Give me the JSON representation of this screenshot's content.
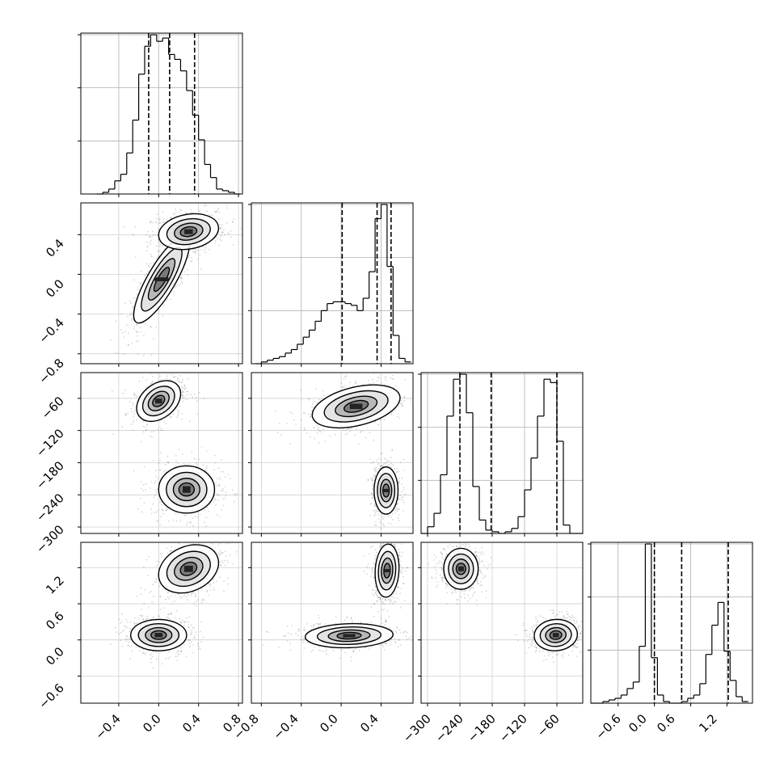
{
  "chart_data": {
    "type": "corner",
    "grid": true,
    "tick_labels": {
      "p0": [
        "−0.4",
        "0.0",
        "0.4",
        "0.8"
      ],
      "p1": [
        "−0.8",
        "−0.4",
        "0.0",
        "0.4"
      ],
      "p2": [
        "−300",
        "−240",
        "−180",
        "−120",
        "−60"
      ],
      "p3": [
        "−0.6",
        "0.0",
        "0.6",
        "1.2"
      ]
    },
    "parameters": [
      {
        "ticks": [
          -0.4,
          0.0,
          0.4,
          0.8
        ],
        "range": [
          -0.78,
          0.84
        ],
        "quantiles": [
          -0.1,
          0.11,
          0.36
        ],
        "hist_bins": [
          -0.62,
          -0.56,
          -0.5,
          -0.44,
          -0.38,
          -0.32,
          -0.26,
          -0.2,
          -0.14,
          -0.08,
          -0.02,
          0.04,
          0.1,
          0.16,
          0.22,
          0.28,
          0.34,
          0.4,
          0.46,
          0.52,
          0.58,
          0.64,
          0.7,
          0.76,
          0.82
        ],
        "hist_counts": [
          0,
          0.01,
          0.03,
          0.08,
          0.12,
          0.25,
          0.45,
          0.73,
          0.9,
          0.97,
          0.93,
          0.95,
          0.85,
          0.82,
          0.75,
          0.63,
          0.48,
          0.33,
          0.18,
          0.1,
          0.03,
          0.02,
          0.01,
          0
        ]
      },
      {
        "ticks": [
          -0.8,
          -0.4,
          0.0,
          0.4
        ],
        "range": [
          -0.9,
          0.72
        ],
        "quantiles": [
          0.01,
          0.36,
          0.5
        ],
        "hist_bins": [
          -0.86,
          -0.8,
          -0.74,
          -0.68,
          -0.62,
          -0.56,
          -0.5,
          -0.44,
          -0.38,
          -0.32,
          -0.26,
          -0.2,
          -0.14,
          -0.08,
          -0.02,
          0.04,
          0.1,
          0.16,
          0.22,
          0.28,
          0.34,
          0.4,
          0.46,
          0.52,
          0.58,
          0.64,
          0.7
        ],
        "hist_counts": [
          0,
          0.01,
          0.02,
          0.03,
          0.04,
          0.06,
          0.08,
          0.11,
          0.15,
          0.19,
          0.24,
          0.3,
          0.34,
          0.35,
          0.35,
          0.34,
          0.33,
          0.3,
          0.37,
          0.52,
          0.82,
          0.9,
          0.55,
          0.16,
          0.03,
          0.01
        ]
      },
      {
        "ticks": [
          -300,
          -240,
          -180,
          -120,
          -60
        ],
        "range": [
          -312,
          -12
        ],
        "quantiles": [
          -240,
          -182,
          -60
        ],
        "hist_bins": [
          -312,
          -300,
          -288,
          -276,
          -264,
          -252,
          -240,
          -228,
          -216,
          -204,
          -192,
          -180,
          -168,
          -156,
          -144,
          -132,
          -120,
          -108,
          -96,
          -84,
          -72,
          -60,
          -48,
          -36,
          -24,
          -12
        ],
        "hist_counts": [
          0,
          0.04,
          0.12,
          0.35,
          0.7,
          0.92,
          0.95,
          0.72,
          0.28,
          0.08,
          0.02,
          0.01,
          0,
          0.01,
          0.03,
          0.1,
          0.26,
          0.45,
          0.7,
          0.92,
          0.9,
          0.55,
          0.05,
          0,
          0
        ]
      },
      {
        "ticks": [
          -0.6,
          0.0,
          0.6,
          1.2
        ],
        "range": [
          -1.05,
          1.62
        ],
        "quantiles": [
          0.0,
          0.45,
          1.22
        ],
        "hist_bins": [
          -1.05,
          -0.95,
          -0.85,
          -0.75,
          -0.65,
          -0.55,
          -0.45,
          -0.35,
          -0.25,
          -0.15,
          -0.05,
          0.05,
          0.15,
          0.25,
          0.35,
          0.45,
          0.55,
          0.65,
          0.75,
          0.85,
          0.95,
          1.05,
          1.15,
          1.25,
          1.35,
          1.45,
          1.55
        ],
        "hist_counts": [
          0,
          0,
          0.01,
          0.02,
          0.03,
          0.05,
          0.09,
          0.13,
          0.35,
          0.98,
          0.28,
          0.05,
          0.01,
          0,
          0,
          0.01,
          0.03,
          0.05,
          0.12,
          0.3,
          0.48,
          0.62,
          0.32,
          0.14,
          0.04,
          0.01
        ]
      }
    ],
    "pairs": [
      {
        "row": 1,
        "col": 0,
        "modes": [
          {
            "center": [
              0.03,
              -0.05
            ],
            "sx": 0.14,
            "sy": 0.22,
            "rho": 0.82,
            "weight": 0.45
          },
          {
            "center": [
              0.3,
              0.43
            ],
            "sx": 0.15,
            "sy": 0.09,
            "rho": 0.2,
            "weight": 0.55
          }
        ]
      },
      {
        "row": 2,
        "col": 0,
        "modes": [
          {
            "center": [
              0.0,
              -65
            ],
            "sx": 0.11,
            "sy": 19,
            "rho": 0.35,
            "weight": 0.5
          },
          {
            "center": [
              0.28,
              -230
            ],
            "sx": 0.14,
            "sy": 22,
            "rho": 0.0,
            "weight": 0.5
          }
        ]
      },
      {
        "row": 2,
        "col": 1,
        "modes": [
          {
            "center": [
              0.15,
              -75
            ],
            "sx": 0.22,
            "sy": 20,
            "rho": 0.4,
            "weight": 0.5
          },
          {
            "center": [
              0.45,
              -232
            ],
            "sx": 0.06,
            "sy": 22,
            "rho": 0.0,
            "weight": 0.5
          }
        ]
      },
      {
        "row": 3,
        "col": 0,
        "modes": [
          {
            "center": [
              0.0,
              0.08
            ],
            "sx": 0.14,
            "sy": 0.13,
            "rho": 0.0,
            "weight": 0.5
          },
          {
            "center": [
              0.3,
              1.18
            ],
            "sx": 0.15,
            "sy": 0.2,
            "rho": 0.25,
            "weight": 0.5
          }
        ]
      },
      {
        "row": 3,
        "col": 1,
        "modes": [
          {
            "center": [
              0.08,
              0.07
            ],
            "sx": 0.22,
            "sy": 0.1,
            "rho": 0.1,
            "weight": 0.5
          },
          {
            "center": [
              0.46,
              1.15
            ],
            "sx": 0.06,
            "sy": 0.22,
            "rho": 0.1,
            "weight": 0.5
          }
        ]
      },
      {
        "row": 3,
        "col": 2,
        "modes": [
          {
            "center": [
              -238,
              1.18
            ],
            "sx": 16,
            "sy": 0.17,
            "rho": 0.0,
            "weight": 0.5
          },
          {
            "center": [
              -62,
              0.08
            ],
            "sx": 20,
            "sy": 0.13,
            "rho": 0.05,
            "weight": 0.5
          }
        ]
      }
    ]
  }
}
